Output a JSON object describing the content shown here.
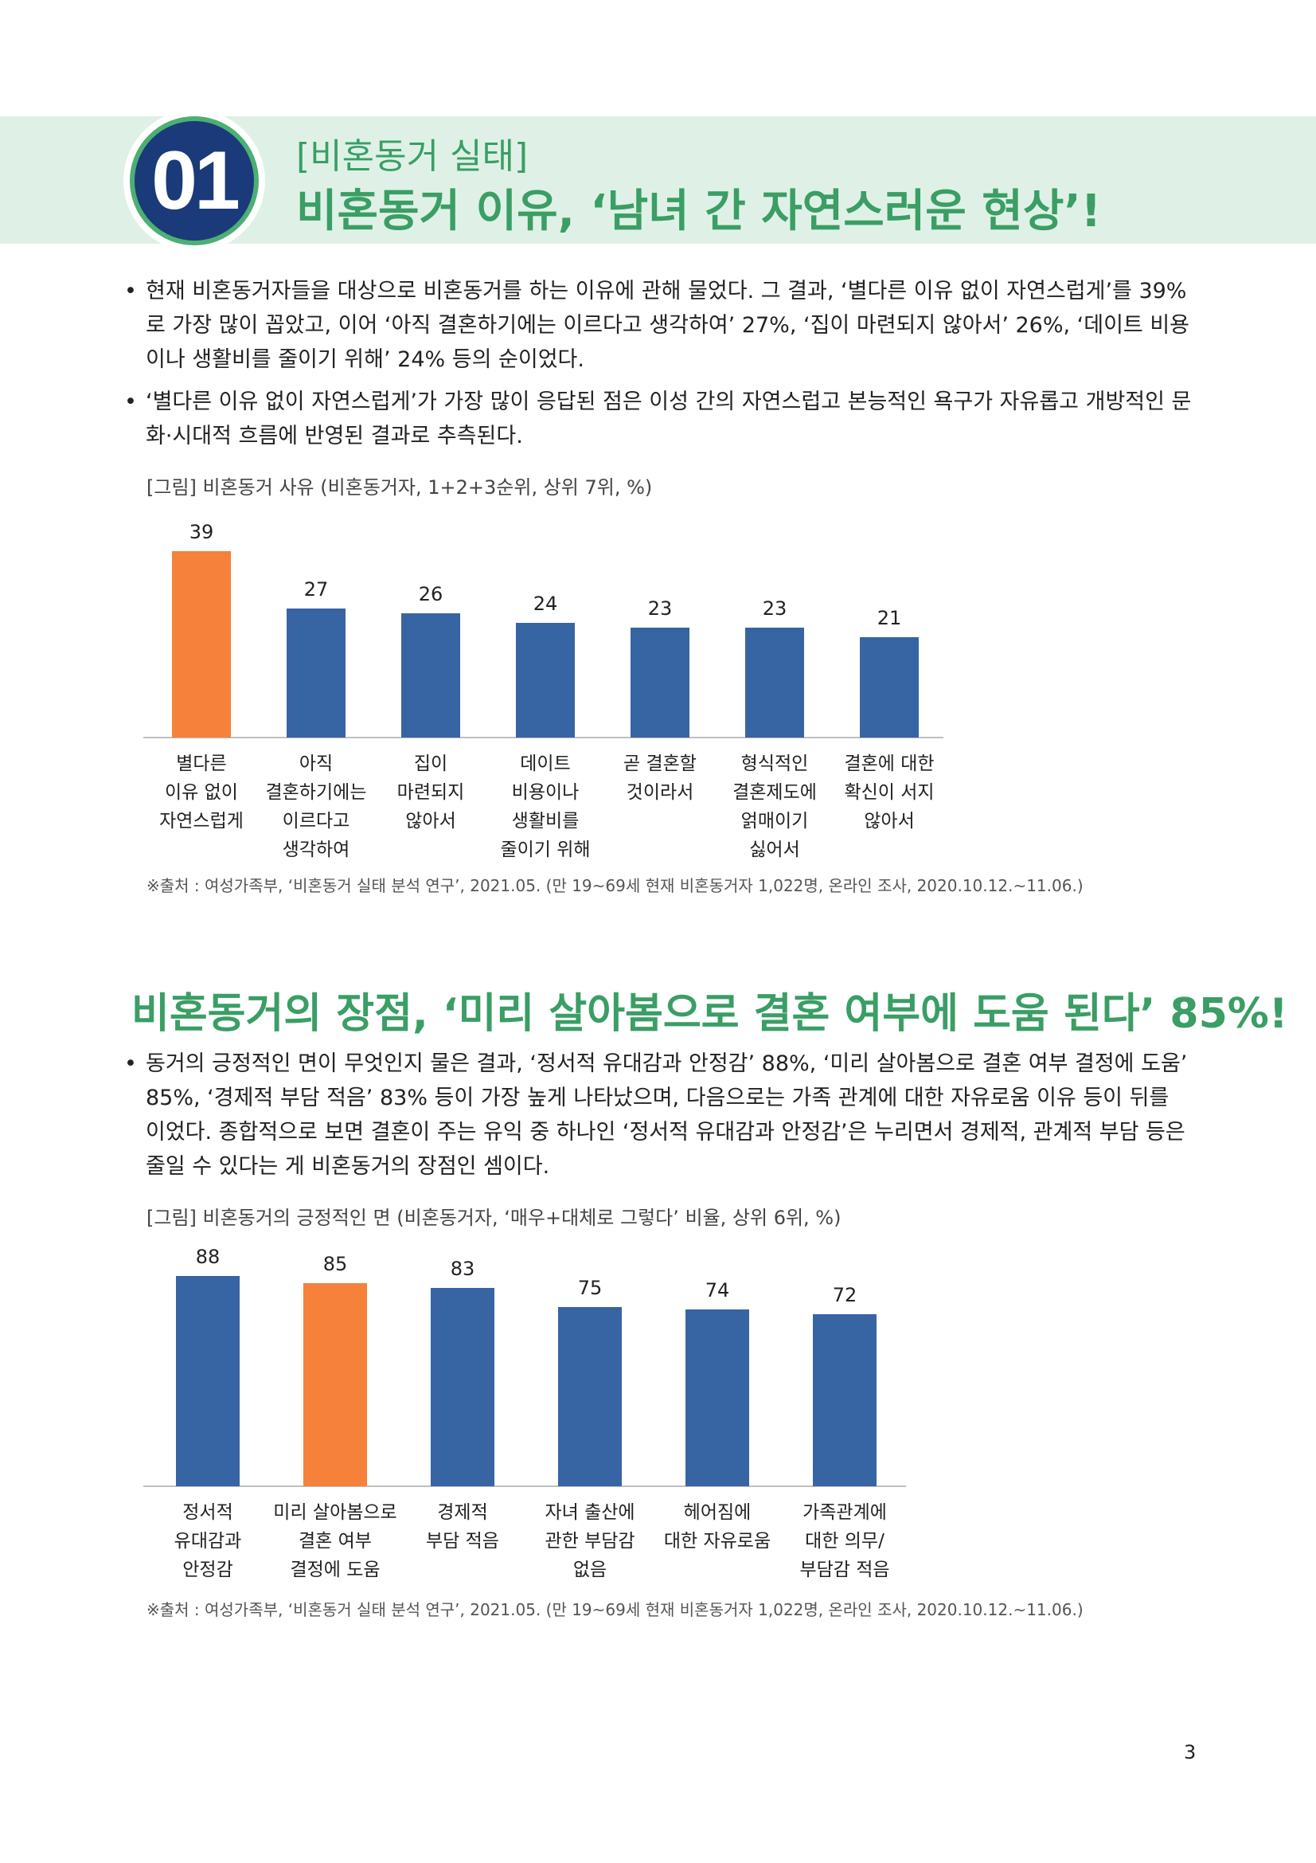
{
  "header": {
    "number": "01",
    "subtitle": "[비혼동거 실태]",
    "title": "비혼동거 이유, ‘남녀 간 자연스러운 현상’!"
  },
  "section1": {
    "bullets": [
      "현재 비혼동거자들을 대상으로 비혼동거를 하는 이유에 관해 물었다. 그 결과, ‘별다른 이유 없이 자연스럽게’를 39%로 가장 많이 꼽았고, 이어 ‘아직 결혼하기에는 이르다고 생각하여’ 27%, ‘집이 마련되지 않아서’ 26%, ‘데이트 비용이나 생활비를 줄이기 위해’ 24% 등의 순이었다.",
      "‘별다른 이유 없이 자연스럽게’가 가장 많이 응답된 점은 이성 간의 자연스럽고 본능적인 욕구가 자유롭고 개방적인 문화·시대적 흐름에 반영된 결과로 추측된다."
    ],
    "caption": "[그림] 비혼동거 사유 (비혼동거자, 1+2+3순위, 상위 7위, %)",
    "source": "※출처 : 여성가족부, ‘비혼동거 실태 분석 연구’, 2021.05. (만 19~69세 현재 비혼동거자 1,022명, 온라인 조사, 2020.10.12.~11.06.)"
  },
  "section2": {
    "title": "비혼동거의 장점, ‘미리 살아봄으로 결혼 여부에 도움 된다’ 85%!",
    "bullets": [
      "동거의 긍정적인 면이 무엇인지 물은 결과, ‘정서적 유대감과 안정감’ 88%, ‘미리 살아봄으로 결혼 여부 결정에 도움’ 85%, ‘경제적 부담 적음’ 83% 등이 가장 높게 나타났으며, 다음으로는 가족 관계에 대한 자유로움 이유 등이 뒤를 이었다. 종합적으로 보면 결혼이 주는 유익 중 하나인 ‘정서적 유대감과 안정감’은 누리면서 경제적, 관계적 부담 등은 줄일 수 있다는 게 비혼동거의 장점인 셈이다."
    ],
    "caption": "[그림] 비혼동거의 긍정적인 면 (비혼동거자, ‘매우+대체로 그렇다’ 비율, 상위 6위, %)",
    "source": "※출처 : 여성가족부, ‘비혼동거 실태 분석 연구’, 2021.05. (만 19~69세 현재 비혼동거자 1,022명, 온라인 조사, 2020.10.12.~11.06.)"
  },
  "page_number": "3",
  "colors": {
    "green": "#3a9e65",
    "navy": "#1a3a7a",
    "bar_blue": "#3764a3",
    "bar_orange": "#f5813a"
  },
  "chart_data": [
    {
      "type": "bar",
      "categories": [
        [
          "별다른",
          "이유 없이",
          "자연스럽게"
        ],
        [
          "아직",
          "결혼하기에는",
          "이르다고",
          "생각하여"
        ],
        [
          "집이",
          "마련되지",
          "않아서"
        ],
        [
          "데이트",
          "비용이나",
          "생활비를",
          "줄이기 위해"
        ],
        [
          "곧 결혼할",
          "것이라서"
        ],
        [
          "형식적인",
          "결혼제도에",
          "얽매이기",
          "싫어서"
        ],
        [
          "결혼에 대한",
          "확신이 서지",
          "않아서"
        ]
      ],
      "values": [
        39,
        27,
        26,
        24,
        23,
        23,
        21
      ],
      "highlight_index": 0,
      "ylim": [
        0,
        39
      ]
    },
    {
      "type": "bar",
      "categories": [
        [
          "정서적",
          "유대감과",
          "안정감"
        ],
        [
          "미리 살아봄으로",
          "결혼 여부",
          "결정에 도움"
        ],
        [
          "경제적",
          "부담 적음"
        ],
        [
          "자녀 출산에",
          "관한 부담감",
          "없음"
        ],
        [
          "헤어짐에",
          "대한 자유로움"
        ],
        [
          "가족관계에",
          "대한 의무/",
          "부담감 적음"
        ]
      ],
      "values": [
        88,
        85,
        83,
        75,
        74,
        72
      ],
      "highlight_index": 1,
      "ylim": [
        0,
        88
      ]
    }
  ]
}
